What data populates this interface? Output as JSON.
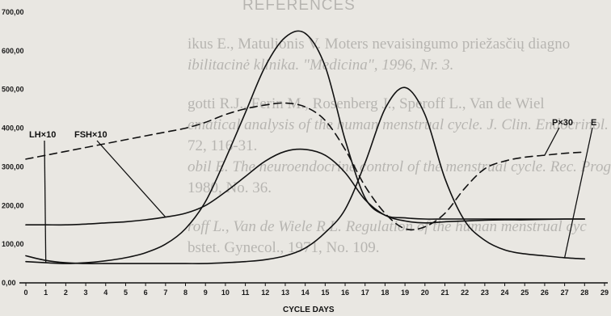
{
  "background_text": {
    "heading": "REFERENCES",
    "lines": [
      "ikus E., Matulionis V. Moters nevaisingumo priežasčių diagno",
      "ibilitacinė klinika. \"Medicina\", 1996, Nr. 3.",
      "gotti R.J., Ferin M., Rosenberg J., Speroff L., Van de Wiel",
      "ematical analysis of the human menstrual cycle. J. Clin. Endocrinol.",
      "72, 116-31.",
      "obil E. The neuroendocrine control of the menstrual cycle. Rec. Progr.",
      "1980, No. 36.",
      "roff L., Van de Wiele R.L. Regulation of the human menstrual cyc",
      "bstet. Gynecol., 1971, No. 109.",
      "",
      "...",
      "..."
    ]
  },
  "chart_data": {
    "type": "line",
    "title": "",
    "xlabel": "CYCLE DAYS",
    "ylabel": "",
    "xlim": [
      0,
      29
    ],
    "ylim": [
      0,
      700
    ],
    "x_ticks": [
      "0",
      "1",
      "2",
      "3",
      "4",
      "5",
      "6",
      "7",
      "8",
      "9",
      "10",
      "11",
      "12",
      "13",
      "14",
      "15",
      "16",
      "17",
      "18",
      "19",
      "20",
      "21",
      "22",
      "23",
      "24",
      "25",
      "26",
      "27",
      "28",
      "29"
    ],
    "y_ticks": [
      "0,00",
      "100,00",
      "200,00",
      "300,00",
      "400,00",
      "500,00",
      "600,00",
      "700,00"
    ],
    "grid": false,
    "series_labels": [
      "LH×10",
      "FSH×10",
      "P×30",
      "E"
    ],
    "series": [
      {
        "name": "LH×10",
        "style": "solid",
        "x": [
          0,
          1,
          2,
          3,
          4,
          5,
          6,
          7,
          8,
          9,
          10,
          11,
          12,
          13,
          14,
          15,
          16,
          17,
          18,
          19,
          20,
          21,
          22,
          23,
          24,
          25,
          26,
          27,
          28
        ],
        "y": [
          55,
          52,
          50,
          52,
          57,
          65,
          78,
          100,
          140,
          210,
          320,
          440,
          560,
          635,
          645,
          560,
          370,
          220,
          175,
          168,
          165,
          165,
          165,
          165,
          165,
          165,
          165,
          165,
          165
        ]
      },
      {
        "name": "FSH×10",
        "style": "solid",
        "x": [
          0,
          1,
          2,
          3,
          4,
          5,
          6,
          7,
          8,
          9,
          10,
          11,
          12,
          13,
          14,
          15,
          16,
          17,
          18,
          19,
          20,
          21,
          22,
          23,
          24,
          25,
          26,
          27,
          28
        ],
        "y": [
          150,
          150,
          150,
          152,
          155,
          158,
          163,
          170,
          180,
          200,
          235,
          275,
          315,
          340,
          345,
          330,
          285,
          215,
          175,
          160,
          155,
          158,
          160,
          162,
          163,
          163,
          164,
          165,
          165
        ]
      },
      {
        "name": "P×30",
        "style": "dashed",
        "x": [
          0,
          1,
          2,
          3,
          4,
          5,
          6,
          7,
          8,
          9,
          10,
          11,
          12,
          13,
          14,
          15,
          16,
          17,
          18,
          19,
          20,
          21,
          22,
          23,
          24,
          25,
          26,
          27,
          28
        ],
        "y": [
          320,
          330,
          340,
          350,
          360,
          370,
          380,
          390,
          400,
          415,
          435,
          450,
          460,
          465,
          455,
          420,
          345,
          250,
          180,
          140,
          145,
          180,
          245,
          295,
          315,
          325,
          330,
          335,
          338
        ]
      },
      {
        "name": "E",
        "style": "solid",
        "x": [
          0,
          1,
          2,
          3,
          4,
          5,
          6,
          7,
          8,
          9,
          10,
          11,
          12,
          13,
          14,
          15,
          16,
          17,
          18,
          19,
          20,
          21,
          22,
          23,
          24,
          25,
          26,
          27,
          28
        ],
        "y": [
          70,
          58,
          52,
          50,
          50,
          50,
          50,
          50,
          50,
          50,
          52,
          55,
          60,
          70,
          90,
          130,
          190,
          310,
          450,
          505,
          435,
          270,
          160,
          110,
          85,
          75,
          70,
          65,
          62
        ]
      }
    ],
    "colors": {
      "ink": "#111111",
      "paper": "#e9e7e2",
      "bleed_text": "#bdbab4"
    }
  }
}
